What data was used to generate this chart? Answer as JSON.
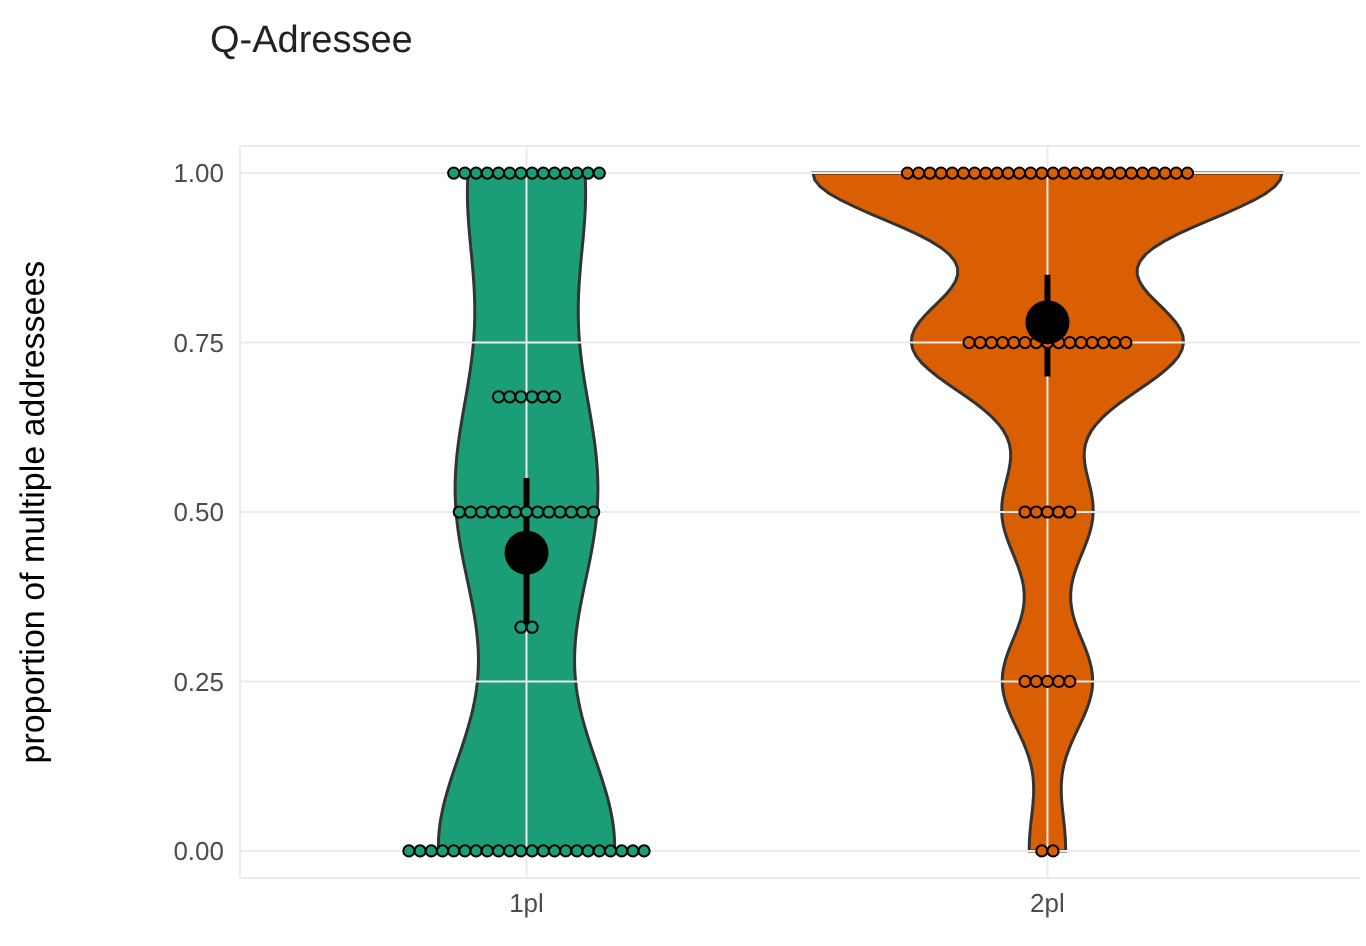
{
  "chart_data": {
    "type": "scatter",
    "title": "Q-Adressee",
    "ylabel": "proportion of multiple addressees",
    "categories": [
      "1pl",
      "2pl"
    ],
    "series": [
      {
        "type": "scatter",
        "color": "#1b9e77",
        "x": [
          "1pl",
          "1pl",
          "1pl",
          "1pl",
          "1pl",
          "1pl",
          "1pl",
          "1pl",
          "1pl",
          "1pl",
          "1pl",
          "1pl",
          "1pl",
          "1pl",
          "1pl",
          "1pl",
          "1pl",
          "1pl",
          "1pl",
          "1pl",
          "1pl",
          "1pl",
          "1pl",
          "1pl",
          "1pl",
          "1pl",
          "1pl",
          "1pl",
          "1pl",
          "1pl",
          "1pl",
          "1pl",
          "1pl",
          "1pl",
          "1pl",
          "1pl",
          "1pl",
          "1pl",
          "1pl",
          "1pl",
          "1pl",
          "1pl",
          "1pl",
          "1pl",
          "1pl",
          "1pl",
          "1pl",
          "1pl",
          "1pl",
          "1pl",
          "1pl",
          "1pl",
          "1pl",
          "1pl",
          "1pl",
          "1pl",
          "1pl"
        ],
        "values": [
          1,
          1,
          1,
          1,
          1,
          1,
          1,
          1,
          1,
          1,
          1,
          1,
          1,
          1,
          0.67,
          0.67,
          0.67,
          0.67,
          0.67,
          0.67,
          0.5,
          0.5,
          0.5,
          0.5,
          0.5,
          0.5,
          0.5,
          0.5,
          0.5,
          0.5,
          0.5,
          0.5,
          0.5,
          0.33,
          0.33,
          0,
          0,
          0,
          0,
          0,
          0,
          0,
          0,
          0,
          0,
          0,
          0,
          0,
          0,
          0,
          0,
          0,
          0,
          0,
          0,
          0,
          0
        ]
      },
      {
        "type": "scatter",
        "color": "#d95f02",
        "x": [
          "2pl",
          "2pl",
          "2pl",
          "2pl",
          "2pl",
          "2pl",
          "2pl",
          "2pl",
          "2pl",
          "2pl",
          "2pl",
          "2pl",
          "2pl",
          "2pl",
          "2pl",
          "2pl",
          "2pl",
          "2pl",
          "2pl",
          "2pl",
          "2pl",
          "2pl",
          "2pl",
          "2pl",
          "2pl",
          "2pl",
          "2pl",
          "2pl",
          "2pl",
          "2pl",
          "2pl",
          "2pl",
          "2pl",
          "2pl",
          "2pl",
          "2pl",
          "2pl",
          "2pl",
          "2pl",
          "2pl",
          "2pl",
          "2pl",
          "2pl",
          "2pl",
          "2pl",
          "2pl",
          "2pl",
          "2pl",
          "2pl",
          "2pl",
          "2pl",
          "2pl",
          "2pl"
        ],
        "values": [
          1,
          1,
          1,
          1,
          1,
          1,
          1,
          1,
          1,
          1,
          1,
          1,
          1,
          1,
          1,
          1,
          1,
          1,
          1,
          1,
          1,
          1,
          1,
          1,
          1,
          1,
          0.75,
          0.75,
          0.75,
          0.75,
          0.75,
          0.75,
          0.75,
          0.75,
          0.75,
          0.75,
          0.75,
          0.75,
          0.75,
          0.75,
          0.75,
          0.5,
          0.5,
          0.5,
          0.5,
          0.5,
          0.25,
          0.25,
          0.25,
          0.25,
          0.25,
          0,
          0
        ]
      },
      {
        "type": "scatter",
        "color": "#000000",
        "marker": "circle",
        "x": [
          "1pl",
          "2pl"
        ],
        "values": [
          0.44,
          0.78
        ],
        "errors": [
          [
            0.33,
            0.55
          ],
          [
            0.7,
            0.85
          ]
        ]
      }
    ],
    "ylim": [
      -0.04,
      1.04
    ],
    "yticks": [
      {
        "value": 0,
        "label": "0.00"
      },
      {
        "value": 0.25,
        "label": "0.25"
      },
      {
        "value": 0.5,
        "label": "0.50"
      },
      {
        "value": 0.75,
        "label": "0.75"
      },
      {
        "value": 1,
        "label": "1.00"
      }
    ],
    "grid": true
  }
}
